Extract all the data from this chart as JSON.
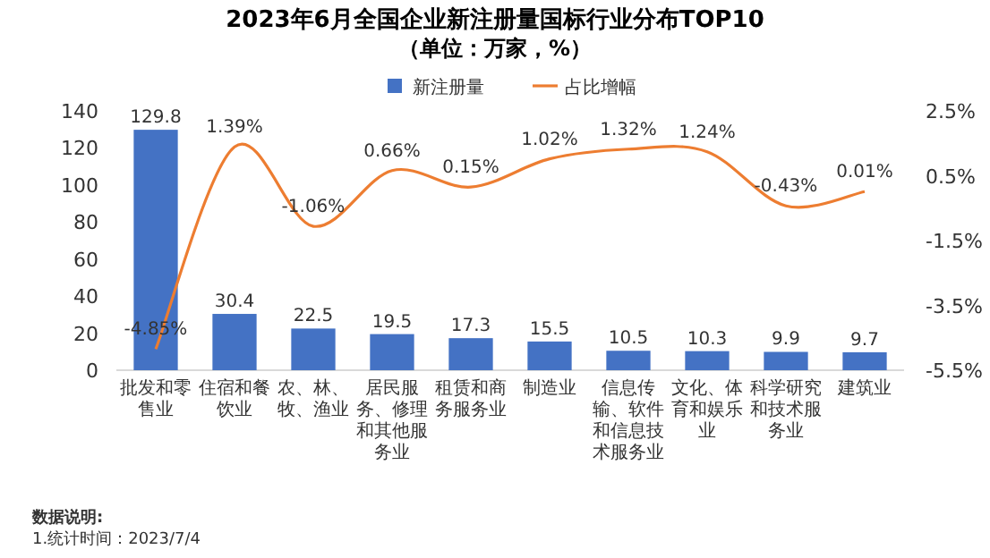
{
  "chart_data": {
    "type": "bar",
    "title": "2023年6月全国企业新注册量国标行业分布TOP10",
    "subtitle": "（单位：万家，%）",
    "categories": [
      "批发和零售业",
      "住宿和餐饮业",
      "农、林、牧、渔业",
      "居民服务、修理和其他服务业",
      "租赁和商务服务业",
      "制造业",
      "信息传输、软件和信息技术服务业",
      "文化、体育和娱乐业",
      "科学研究和技术服务业",
      "建筑业"
    ],
    "series": [
      {
        "name": "新注册量",
        "type": "bar",
        "color": "#4472c4",
        "values": [
          129.8,
          30.4,
          22.5,
          19.5,
          17.3,
          15.5,
          10.5,
          10.3,
          9.9,
          9.7
        ],
        "value_labels": [
          "129.8",
          "30.4",
          "22.5",
          "19.5",
          "17.3",
          "15.5",
          "10.5",
          "10.3",
          "9.9",
          "9.7"
        ]
      },
      {
        "name": "占比增幅",
        "type": "line",
        "axis": "y2",
        "color": "#ed7d31",
        "values": [
          -4.85,
          1.39,
          -1.06,
          0.66,
          0.15,
          1.02,
          1.32,
          1.24,
          -0.43,
          0.01
        ],
        "value_labels": [
          "-4.85%",
          "1.39%",
          "-1.06%",
          "0.66%",
          "0.15%",
          "1.02%",
          "1.32%",
          "1.24%",
          "-0.43%",
          "0.01%"
        ]
      }
    ],
    "ylim": [
      0,
      140
    ],
    "yticks": [
      0,
      20,
      40,
      60,
      80,
      100,
      120,
      140
    ],
    "y2lim": [
      -5.5,
      2.5
    ],
    "y2ticks": [
      {
        "value": -5.5,
        "label": "-5.5%"
      },
      {
        "value": -3.5,
        "label": "-3.5%"
      },
      {
        "value": -1.5,
        "label": "-1.5%"
      },
      {
        "value": 0.5,
        "label": "0.5%"
      },
      {
        "value": 2.5,
        "label": "2.5%"
      }
    ],
    "grid": false,
    "legend": "top",
    "marker": "none",
    "annotations": [
      "数据说明:",
      "1.统计时间：2023/7/4"
    ]
  }
}
